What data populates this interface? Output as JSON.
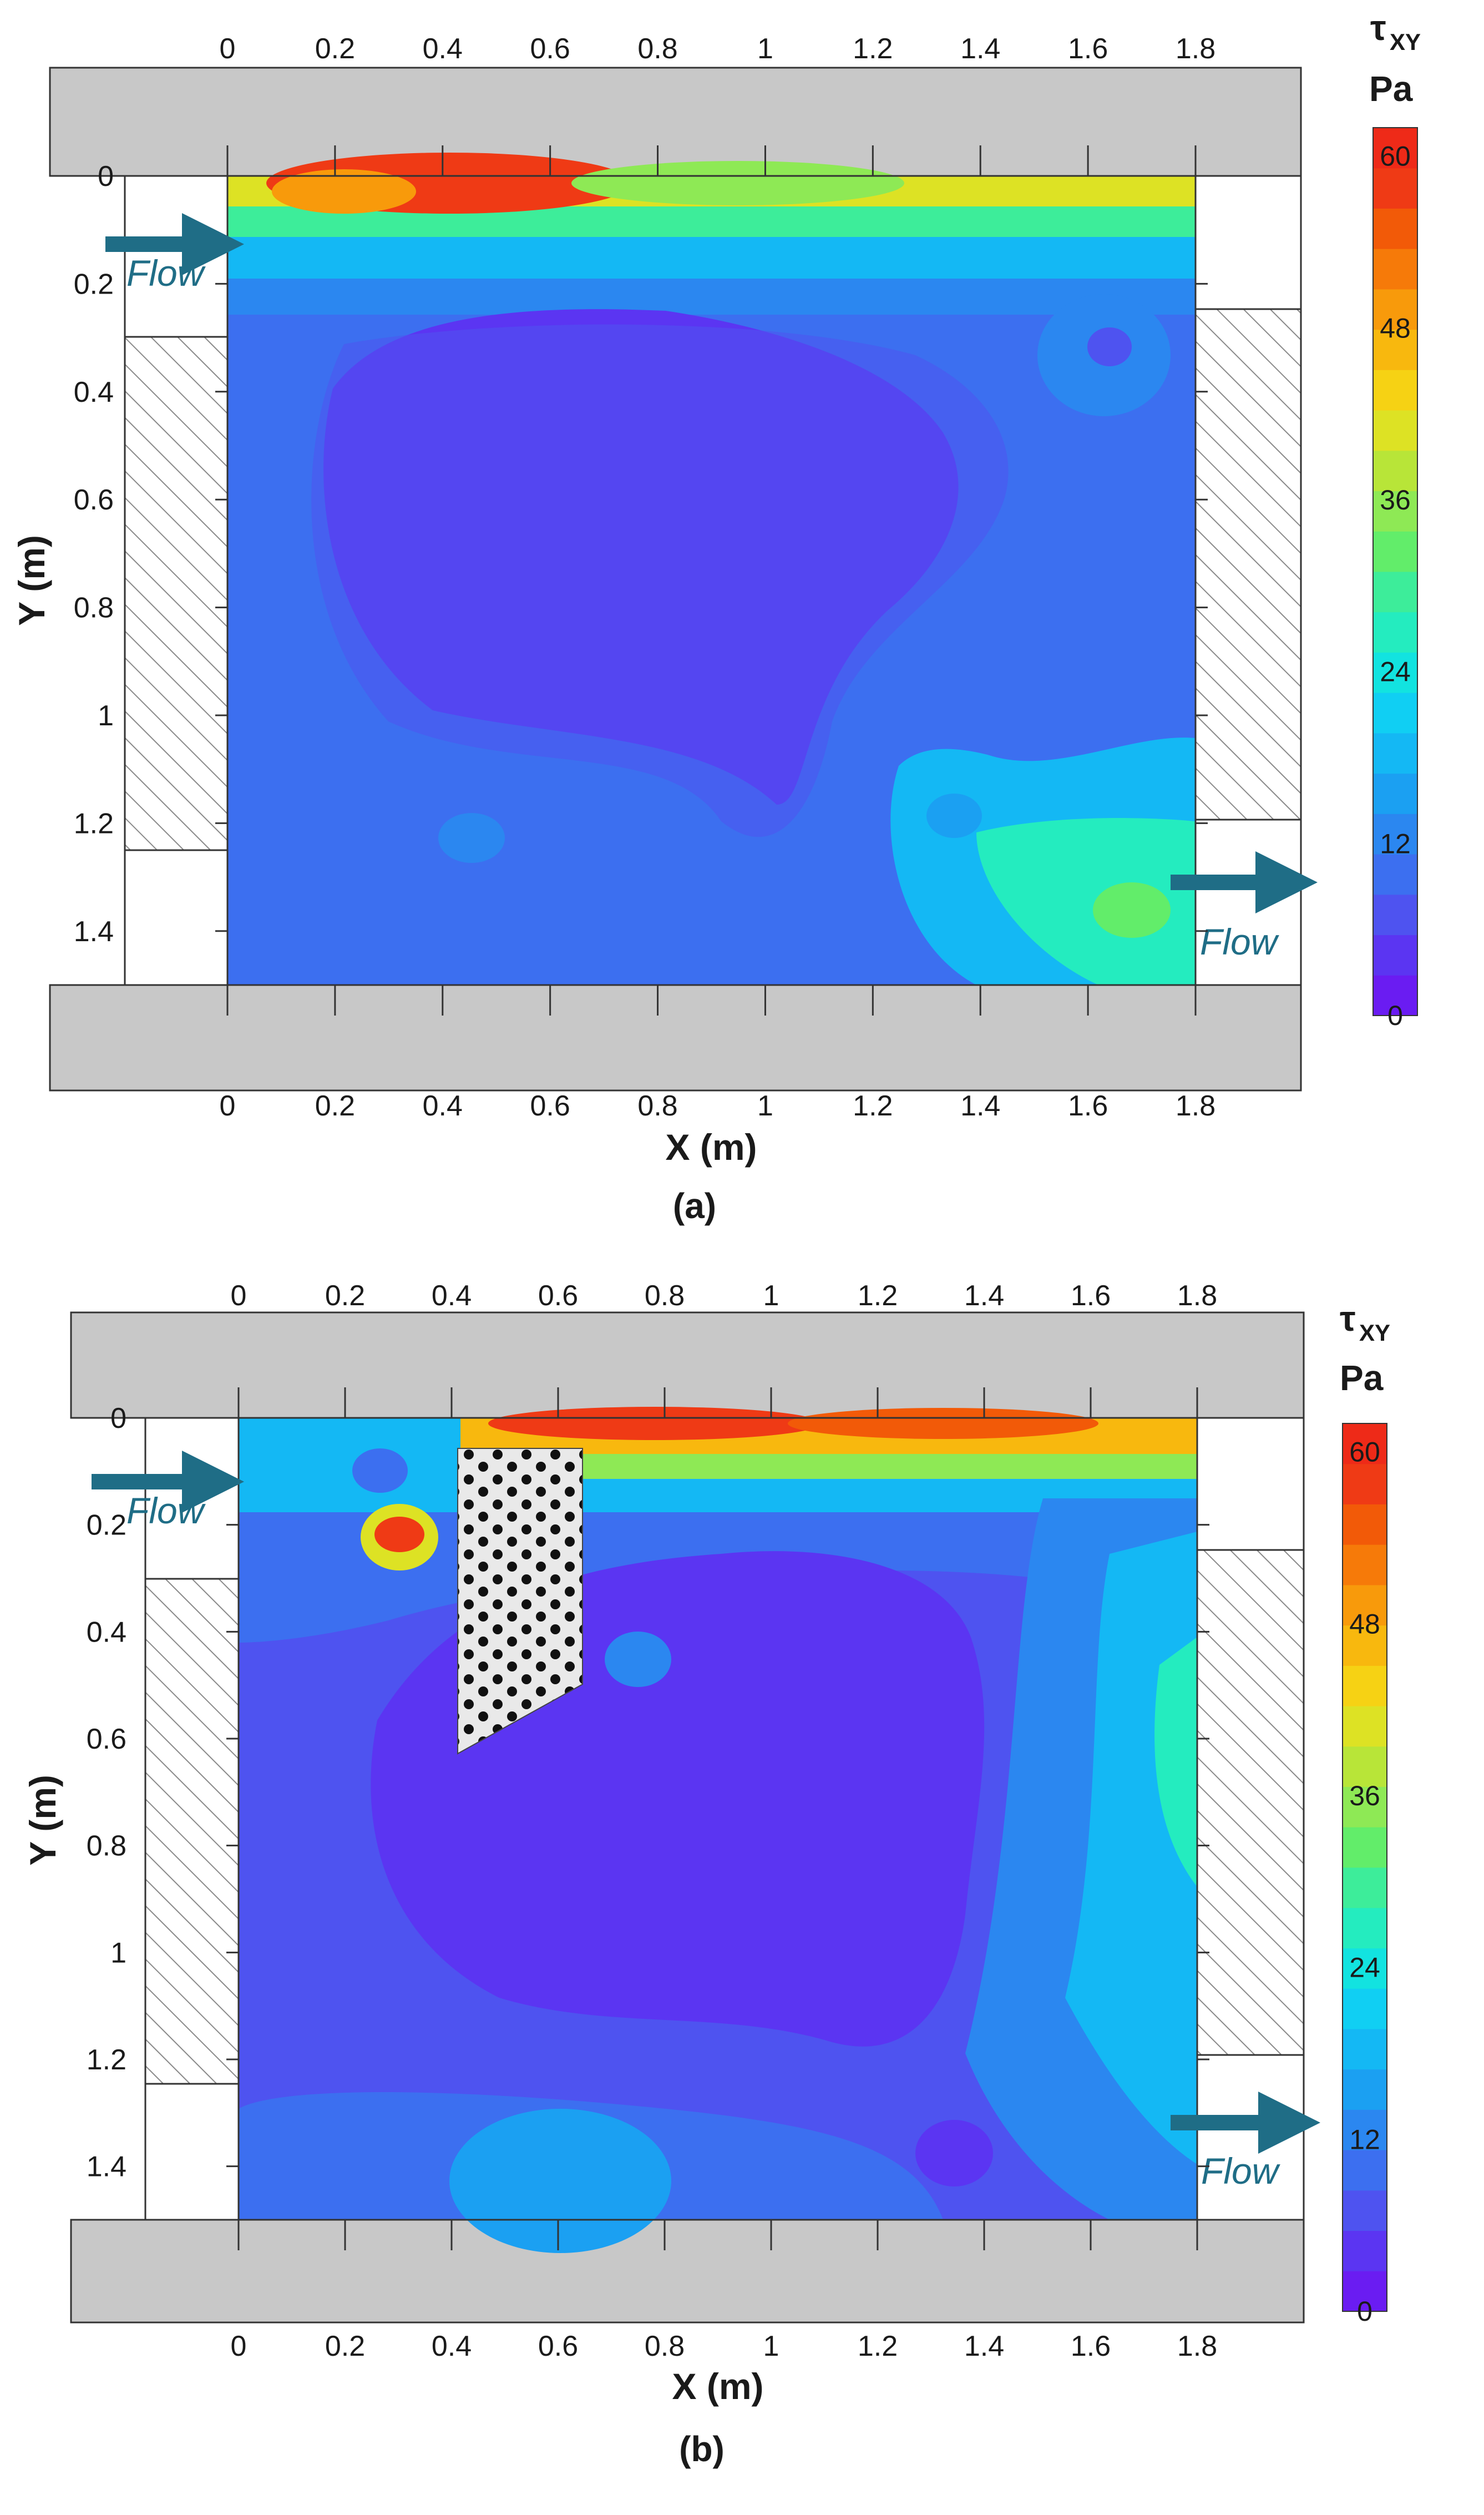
{
  "chart_data": [
    {
      "type": "heatmap",
      "panel_label": "(a)",
      "xlabel": "X (m)",
      "ylabel": "Y (m)",
      "xlim": [
        0,
        1.8
      ],
      "ylim": [
        0,
        1.5
      ],
      "y_inverted": true,
      "x_ticks": [
        "0",
        "0.2",
        "0.4",
        "0.6",
        "0.8",
        "1",
        "1.2",
        "1.4",
        "1.6",
        "1.8"
      ],
      "y_ticks": [
        "0",
        "0.2",
        "0.4",
        "0.6",
        "0.8",
        "1",
        "1.2",
        "1.4"
      ],
      "inlet_label": "Flow",
      "outlet_label": "Flow",
      "colorbar": {
        "title": "τ",
        "subscript": "XY",
        "unit": "Pa",
        "ticks": [
          "60",
          "48",
          "36",
          "24",
          "12",
          "0"
        ],
        "min": 0,
        "max": 62
      },
      "obstacle": null,
      "field_description_points": [
        {
          "x": 0.35,
          "y": 0.02,
          "value": 60
        },
        {
          "x": 1.0,
          "y": 0.05,
          "value": 25
        },
        {
          "x": 0.6,
          "y": 0.65,
          "value": 2
        },
        {
          "x": 1.75,
          "y": 1.38,
          "value": 18
        }
      ]
    },
    {
      "type": "heatmap",
      "panel_label": "(b)",
      "xlabel": "X (m)",
      "ylabel": "Y (m)",
      "xlim": [
        0,
        1.8
      ],
      "ylim": [
        0,
        1.5
      ],
      "y_inverted": true,
      "x_ticks": [
        "0",
        "0.2",
        "0.4",
        "0.6",
        "0.8",
        "1",
        "1.2",
        "1.4",
        "1.6",
        "1.8"
      ],
      "y_ticks": [
        "0",
        "0.2",
        "0.4",
        "0.6",
        "0.8",
        "1",
        "1.2",
        "1.4"
      ],
      "inlet_label": "Flow",
      "outlet_label": "Flow",
      "colorbar": {
        "title": "τ",
        "subscript": "XY",
        "unit": "Pa",
        "ticks": [
          "60",
          "48",
          "36",
          "24",
          "12",
          "0"
        ],
        "min": 0,
        "max": 62
      },
      "obstacle": {
        "x_range": [
          0.41,
          0.65
        ],
        "y_range": [
          0.06,
          0.6
        ],
        "pattern": "perforated"
      },
      "field_description_points": [
        {
          "x": 0.3,
          "y": 0.21,
          "value": 55
        },
        {
          "x": 1.05,
          "y": 0.02,
          "value": 60
        },
        {
          "x": 0.9,
          "y": 0.8,
          "value": 2
        },
        {
          "x": 1.75,
          "y": 0.8,
          "value": 16
        }
      ]
    }
  ],
  "colors": {
    "palette": [
      "#6a1cf2",
      "#5b35f2",
      "#4e53f0",
      "#3c6ff0",
      "#2b87f0",
      "#1ba0f2",
      "#14b8f4",
      "#10cff3",
      "#12e3e0",
      "#24ecbf",
      "#3ded9a",
      "#62ed6a",
      "#8ee955",
      "#b8e538",
      "#dde224",
      "#f6d214",
      "#f8b80e",
      "#f89a0b",
      "#f67a09",
      "#f25a08",
      "#ef3a15",
      "#ee2a18"
    ],
    "wall": "#c8c8c8",
    "arrow": "#1f6d86"
  }
}
